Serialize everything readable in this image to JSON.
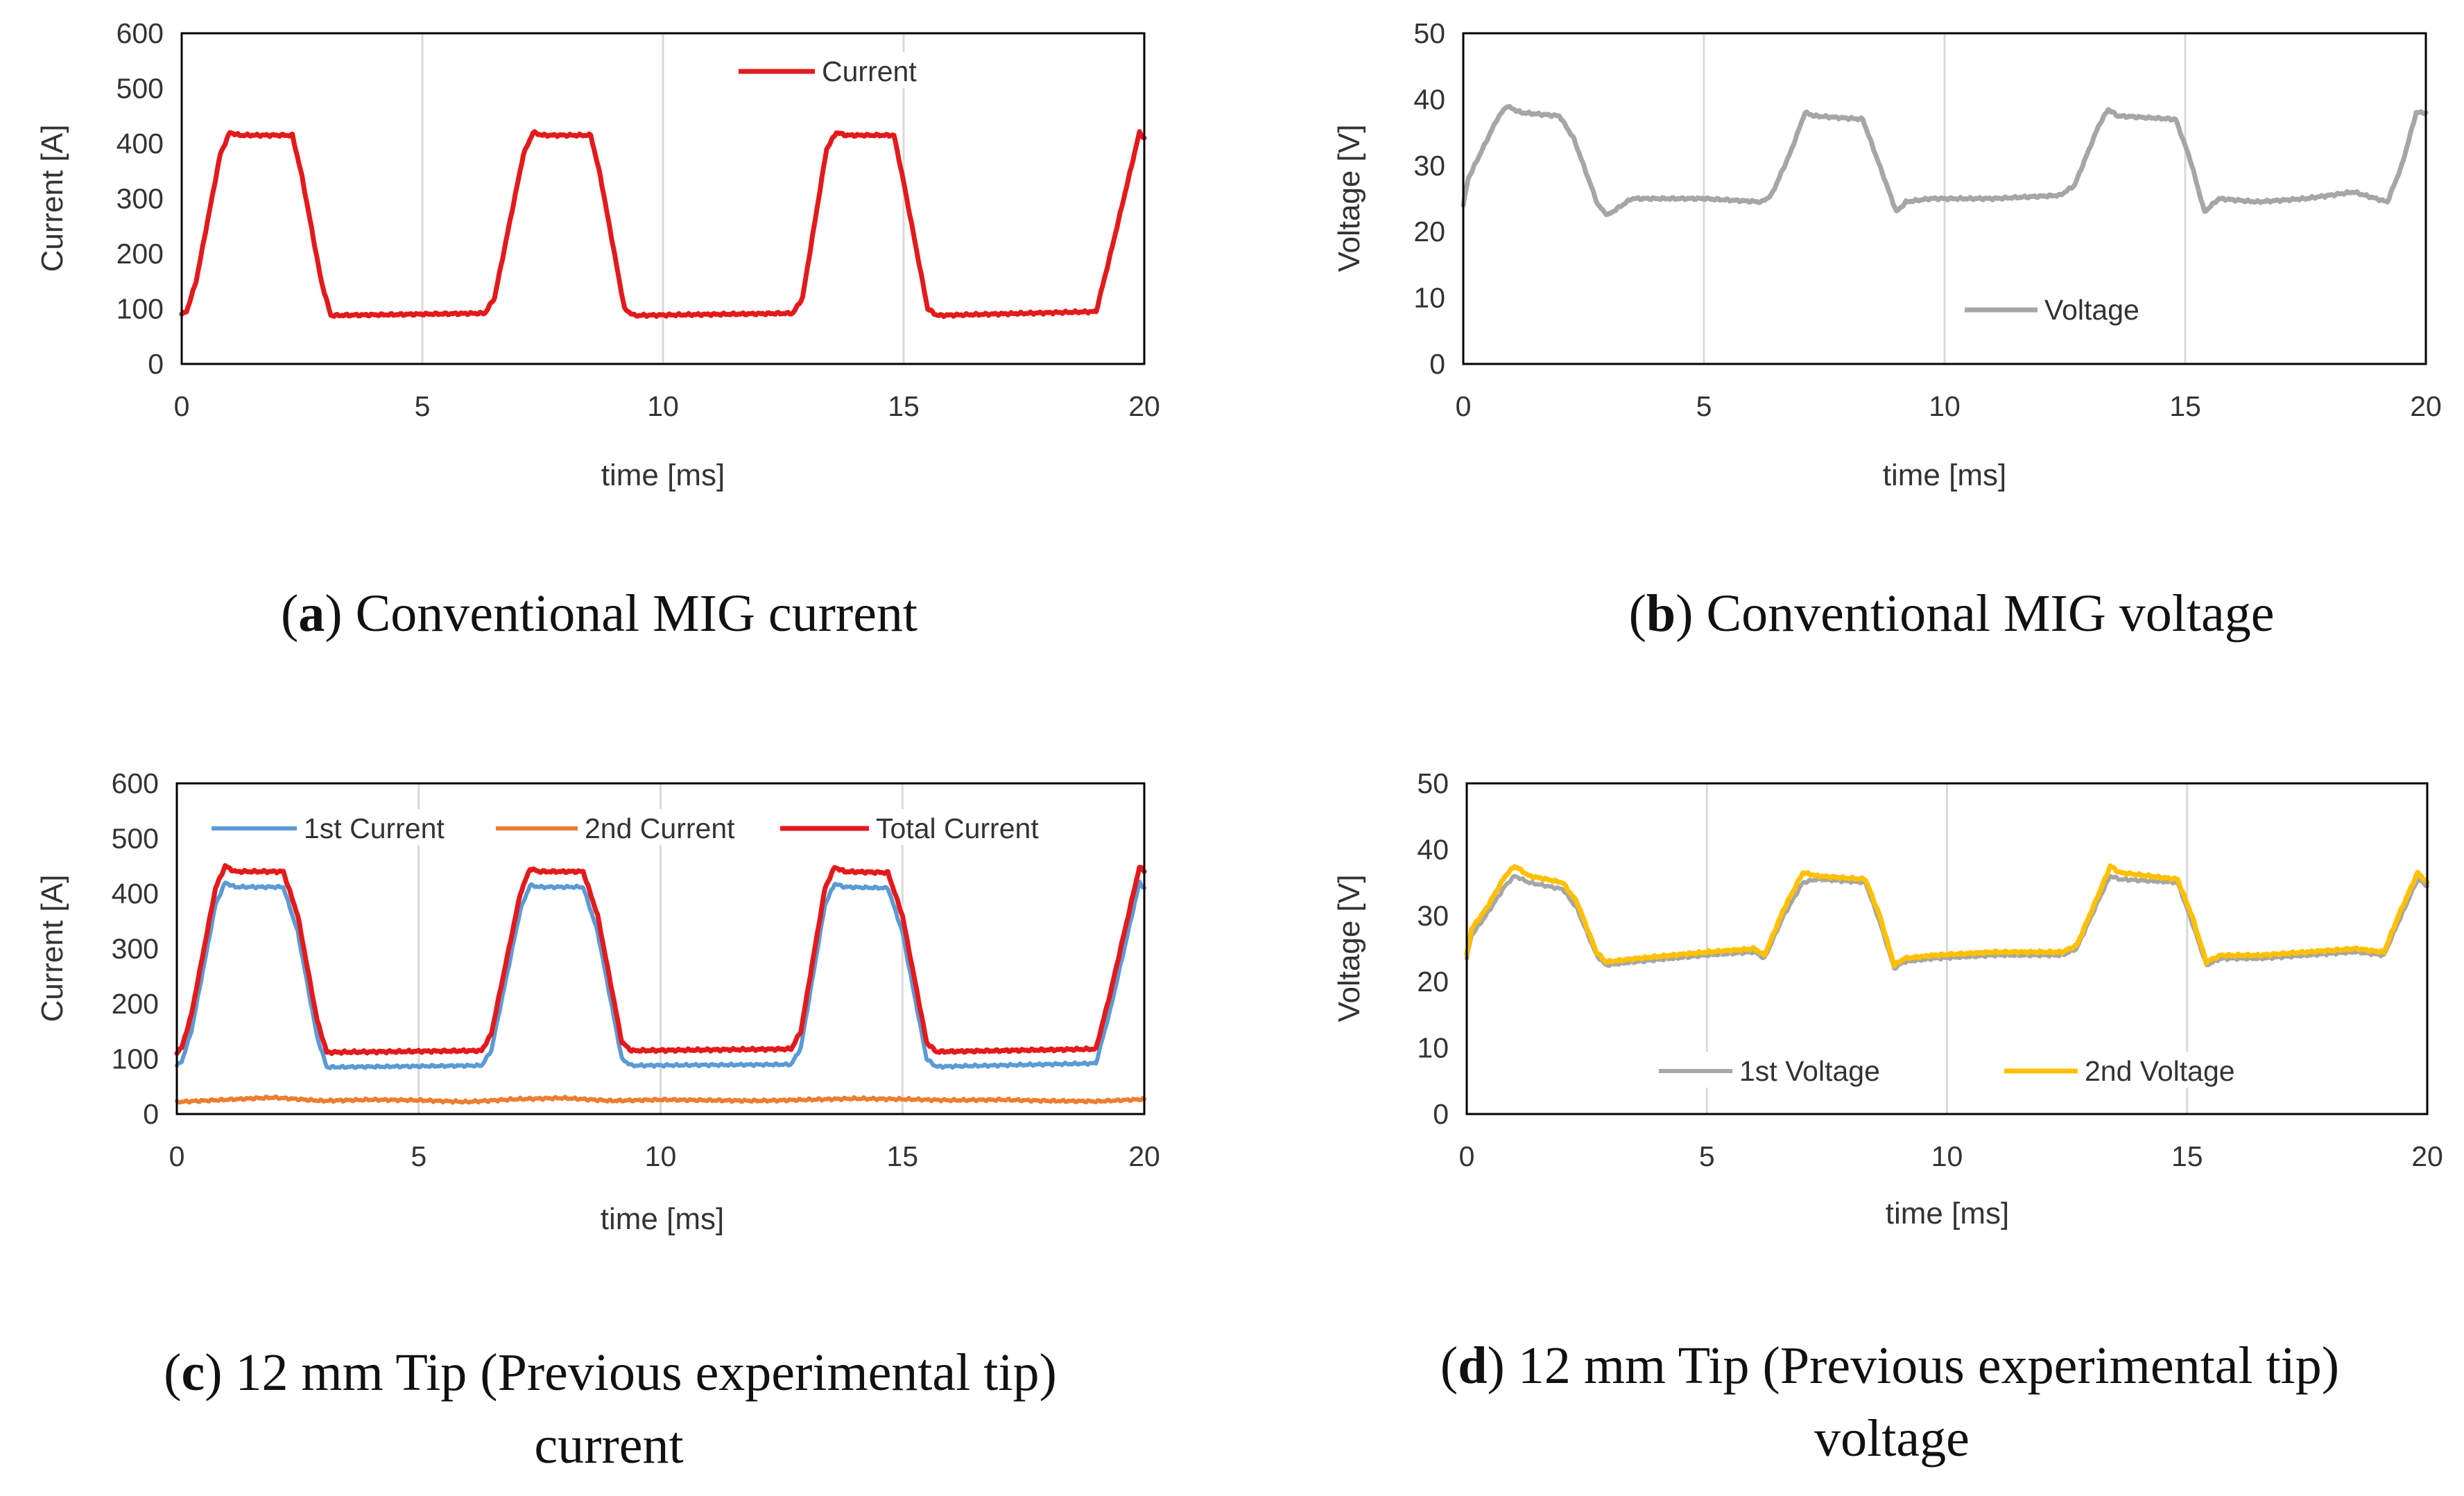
{
  "chart_data": [
    {
      "id": "a",
      "type": "line",
      "caption": {
        "letter": "a",
        "text": "Conventional MIG current",
        "line2": ""
      },
      "xlabel": "time [ms]",
      "ylabel": "Current [A]",
      "xlim": [
        0,
        20
      ],
      "ylim": [
        0,
        600
      ],
      "xticks": [
        0,
        5,
        10,
        15,
        20
      ],
      "yticks": [
        0,
        100,
        200,
        300,
        400,
        500,
        600
      ],
      "grid": "vertical",
      "legend_position": "top-right",
      "series": [
        {
          "name": "Current",
          "color": "#e31a1c",
          "width": 7,
          "x": [
            0,
            0.1,
            0.3,
            0.8,
            1.0,
            1.2,
            2.3,
            2.5,
            2.9,
            3.1,
            6.3,
            6.5,
            7.1,
            7.3,
            7.5,
            8.5,
            8.7,
            9.2,
            9.4,
            12.7,
            12.9,
            13.4,
            13.6,
            13.8,
            14.8,
            15.0,
            15.5,
            15.7,
            19.0,
            19.3,
            19.9,
            20.0
          ],
          "values": [
            90,
            95,
            150,
            380,
            420,
            415,
            415,
            340,
            150,
            88,
            92,
            120,
            380,
            420,
            415,
            415,
            340,
            100,
            88,
            92,
            120,
            390,
            420,
            415,
            415,
            330,
            100,
            88,
            95,
            200,
            420,
            410
          ]
        }
      ]
    },
    {
      "id": "b",
      "type": "line",
      "caption": {
        "letter": "b",
        "text": "Conventional MIG voltage",
        "line2": ""
      },
      "xlabel": "time [ms]",
      "ylabel": "Voltage [V]",
      "xlim": [
        0,
        20
      ],
      "ylim": [
        0,
        50
      ],
      "xticks": [
        0,
        5,
        10,
        15,
        20
      ],
      "yticks": [
        0,
        10,
        20,
        30,
        40,
        50
      ],
      "grid": "vertical",
      "legend_position": "bottom-center",
      "series": [
        {
          "name": "Voltage",
          "color": "#a6a6a6",
          "width": 7,
          "x": [
            0,
            0.1,
            0.3,
            0.7,
            0.9,
            1.2,
            2.0,
            2.3,
            2.8,
            3.0,
            3.5,
            5.0,
            6.2,
            6.4,
            6.8,
            7.1,
            7.3,
            8.3,
            8.6,
            9.0,
            9.2,
            9.7,
            11.0,
            12.4,
            12.7,
            13.2,
            13.4,
            13.6,
            14.8,
            15.1,
            15.4,
            15.7,
            16.5,
            17.5,
            18.5,
            19.2,
            19.5,
            19.8,
            20.0
          ],
          "values": [
            24,
            28,
            31,
            37,
            39,
            38,
            37.5,
            34,
            24,
            22.5,
            25,
            25,
            24.5,
            25.5,
            32,
            38,
            37.5,
            37,
            31,
            23,
            24.5,
            25,
            25,
            25.5,
            27,
            36,
            38.5,
            37.5,
            37,
            31,
            23,
            25,
            24.5,
            25,
            26,
            24.5,
            30,
            38,
            38
          ]
        }
      ]
    },
    {
      "id": "c",
      "type": "line",
      "caption": {
        "letter": "c",
        "text": "12 mm Tip (Previous experimental tip)",
        "line2": "current"
      },
      "xlabel": "time [ms]",
      "ylabel": "Current [A]",
      "xlim": [
        0,
        20
      ],
      "ylim": [
        0,
        600
      ],
      "xticks": [
        0,
        5,
        10,
        15,
        20
      ],
      "yticks": [
        0,
        100,
        200,
        300,
        400,
        500,
        600
      ],
      "grid": "vertical",
      "legend_position": "top",
      "series": [
        {
          "name": "1st Current",
          "color": "#5b9bd5",
          "width": 6,
          "x": [
            0,
            0.1,
            0.3,
            0.8,
            1.0,
            1.2,
            2.2,
            2.5,
            2.9,
            3.1,
            6.3,
            6.5,
            7.1,
            7.3,
            7.5,
            8.4,
            8.7,
            9.2,
            9.4,
            12.7,
            12.9,
            13.4,
            13.6,
            13.8,
            14.7,
            15.0,
            15.5,
            15.7,
            19.0,
            19.3,
            19.9,
            20.0
          ],
          "values": [
            88,
            95,
            150,
            380,
            420,
            412,
            412,
            330,
            140,
            85,
            88,
            115,
            370,
            415,
            412,
            412,
            330,
            100,
            88,
            90,
            120,
            380,
            418,
            412,
            410,
            330,
            100,
            86,
            92,
            190,
            420,
            410
          ]
        },
        {
          "name": "2nd Current",
          "color": "#ed7d31",
          "width": 6,
          "x": [
            0,
            1,
            2,
            3,
            4,
            5,
            6,
            7,
            8,
            9,
            10,
            11,
            12,
            13,
            14,
            15,
            16,
            17,
            18,
            19,
            20
          ],
          "values": [
            22,
            26,
            30,
            24,
            26,
            25,
            22,
            27,
            29,
            24,
            26,
            25,
            24,
            26,
            28,
            27,
            25,
            26,
            24,
            23,
            27
          ]
        },
        {
          "name": "Total Current",
          "color": "#e31a1c",
          "width": 7,
          "x": [
            0,
            0.1,
            0.3,
            0.8,
            1.0,
            1.2,
            2.2,
            2.5,
            2.9,
            3.1,
            6.3,
            6.5,
            7.1,
            7.3,
            7.5,
            8.4,
            8.7,
            9.2,
            9.4,
            12.7,
            12.9,
            13.4,
            13.6,
            13.8,
            14.7,
            15.0,
            15.5,
            15.7,
            19.0,
            19.3,
            19.9,
            20.0
          ],
          "values": [
            112,
            120,
            180,
            410,
            450,
            440,
            440,
            360,
            170,
            112,
            115,
            145,
            400,
            445,
            440,
            440,
            360,
            130,
            115,
            118,
            150,
            410,
            448,
            440,
            438,
            360,
            130,
            113,
            118,
            220,
            448,
            440
          ]
        }
      ]
    },
    {
      "id": "d",
      "type": "line",
      "caption": {
        "letter": "d",
        "text": "12 mm Tip (Previous experimental tip)",
        "line2": "voltage"
      },
      "xlabel": "time [ms]",
      "ylabel": "Voltage [V]",
      "xlim": [
        0,
        20
      ],
      "ylim": [
        0,
        50
      ],
      "xticks": [
        0,
        5,
        10,
        15,
        20
      ],
      "yticks": [
        0,
        10,
        20,
        30,
        40,
        50
      ],
      "grid": "vertical",
      "legend_position": "bottom-center",
      "series": [
        {
          "name": "1st Voltage",
          "color": "#a6a6a6",
          "width": 6,
          "x": [
            0,
            0.1,
            0.4,
            0.8,
            1.0,
            1.3,
            2.0,
            2.3,
            2.7,
            2.9,
            3.5,
            5.0,
            6.0,
            6.2,
            6.6,
            7.0,
            7.3,
            8.3,
            8.6,
            8.9,
            9.1,
            9.7,
            11.0,
            12.4,
            12.7,
            13.2,
            13.4,
            13.6,
            14.8,
            15.1,
            15.4,
            15.7,
            16.5,
            17.5,
            18.5,
            19.1,
            19.4,
            19.8,
            20.0
          ],
          "values": [
            23.5,
            27,
            30,
            34.5,
            36,
            35,
            34,
            31,
            24,
            22.5,
            23,
            24,
            24.5,
            23.5,
            30,
            35,
            35.5,
            35,
            29,
            22,
            23,
            23.5,
            24,
            24,
            25,
            33,
            36,
            35.5,
            35,
            29,
            22.5,
            23.5,
            23.5,
            24,
            24.5,
            24,
            29,
            35.5,
            34.5
          ]
        },
        {
          "name": "2nd Voltage",
          "color": "#ffc000",
          "width": 7,
          "x": [
            0,
            0.1,
            0.4,
            0.8,
            1.0,
            1.3,
            2.0,
            2.3,
            2.7,
            2.9,
            3.5,
            5.0,
            6.0,
            6.2,
            6.6,
            7.0,
            7.3,
            8.3,
            8.6,
            8.9,
            9.1,
            9.7,
            11.0,
            12.4,
            12.7,
            13.2,
            13.4,
            13.6,
            14.8,
            15.1,
            15.4,
            15.7,
            16.5,
            17.5,
            18.5,
            19.1,
            19.4,
            19.8,
            20.0
          ],
          "values": [
            24,
            28,
            31,
            36,
            37.5,
            36,
            35,
            32,
            24.5,
            23,
            23.5,
            24.5,
            25,
            24,
            31,
            36.5,
            36,
            35.5,
            30,
            22.5,
            23.5,
            24,
            24.5,
            24.5,
            25.5,
            34,
            37.5,
            36.5,
            35.5,
            30,
            23,
            24,
            24,
            24.5,
            25,
            24.5,
            30,
            36.5,
            35
          ]
        }
      ]
    }
  ]
}
